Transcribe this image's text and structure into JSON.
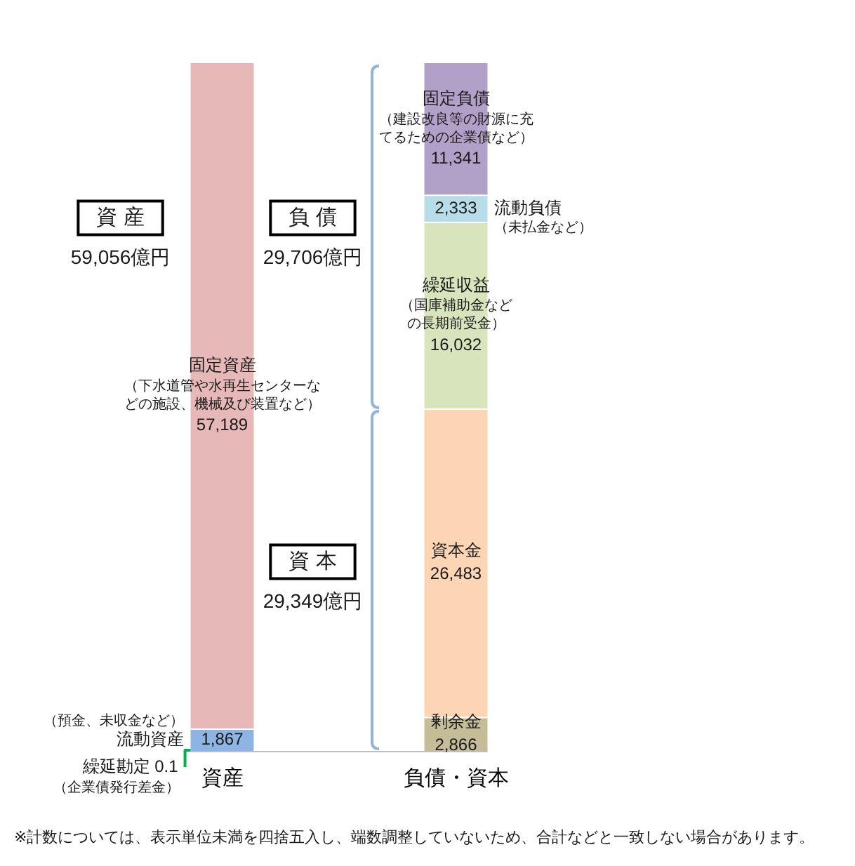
{
  "chart_data": {
    "type": "bar",
    "stacked": true,
    "categories": [
      "資産",
      "負債・資本"
    ],
    "series": [
      {
        "name": "流動資産",
        "color": "#8db4e2",
        "values": [
          1867,
          null
        ],
        "value_labels": [
          "1,867",
          null
        ]
      },
      {
        "name": "固定資産",
        "color": "#e6b8b7",
        "values": [
          57189,
          null
        ],
        "value_labels": [
          "57,189",
          null
        ]
      },
      {
        "name": "剰余金",
        "color": "#c4bd97",
        "values": [
          null,
          2866
        ],
        "value_labels": [
          null,
          "2,866"
        ]
      },
      {
        "name": "資本金",
        "color": "#fcd5b4",
        "values": [
          null,
          26483
        ],
        "value_labels": [
          null,
          "26,483"
        ]
      },
      {
        "name": "繰延収益",
        "color": "#d8e4bc",
        "values": [
          null,
          16032
        ],
        "value_labels": [
          null,
          "16,032"
        ]
      },
      {
        "name": "流動負債",
        "color": "#b7dee8",
        "values": [
          null,
          2333
        ],
        "value_labels": [
          null,
          "2,333"
        ]
      },
      {
        "name": "固定負債",
        "color": "#b1a0c7",
        "values": [
          null,
          11341
        ],
        "value_labels": [
          null,
          "11,341"
        ]
      }
    ],
    "annotations": [
      "（預金、未収金など）",
      "（下水道管や水再生センターなどの施設、機械及び装置など）",
      "（国庫補助金などの長期前受金）",
      "（未払金など）",
      "（建設改良等の財源に充てるための企業債など）",
      "繰延勘定",
      "（企業債発行差金）",
      "0.1",
      "資 産",
      "59,056億円",
      "負 債",
      "29,706億円",
      "資 本",
      "29,349億円",
      "※計数については、表示単位未満を四捨五入し、端数調整していないため、合計などと一致しない場合があります。"
    ],
    "legend": false,
    "grid": false
  }
}
